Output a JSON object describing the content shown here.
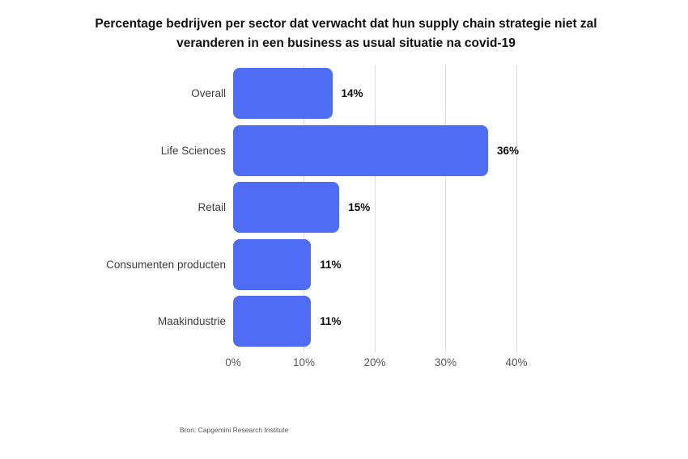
{
  "title": {
    "line1": "Percentage bedrijven per sector dat verwacht dat hun supply chain strategie niet zal",
    "line2": "veranderen in een business as usual situatie na covid-19"
  },
  "source": "Bron: Capgemini Research Institute",
  "chart_data": {
    "type": "bar",
    "orientation": "horizontal",
    "title": "Percentage bedrijven per sector dat verwacht dat hun supply chain strategie niet zal veranderen in een business as usual situatie na covid-19",
    "categories": [
      "Overall",
      "Life Sciences",
      "Retail",
      "Consumenten producten",
      "Maakindustrie"
    ],
    "values": [
      14,
      36,
      15,
      11,
      11
    ],
    "value_labels": [
      "14%",
      "36%",
      "15%",
      "11%",
      "11%"
    ],
    "xlabel": "",
    "ylabel": "",
    "xlim": [
      0,
      40
    ],
    "x_ticks": [
      {
        "value": 0,
        "label": "0%"
      },
      {
        "value": 10,
        "label": "10%"
      },
      {
        "value": 20,
        "label": "20%"
      },
      {
        "value": 30,
        "label": "30%"
      },
      {
        "value": 40,
        "label": "40%"
      }
    ],
    "grid": "vertical",
    "legend": "none",
    "colors": {
      "bar": "#4f6cf5",
      "gridline": "#dcdcdc",
      "title": "#111111",
      "category_label": "#3d3d3d",
      "value_label": "#0d0d0d",
      "tick_label": "#565656",
      "source": "#555555",
      "background": "#ffffff"
    }
  }
}
